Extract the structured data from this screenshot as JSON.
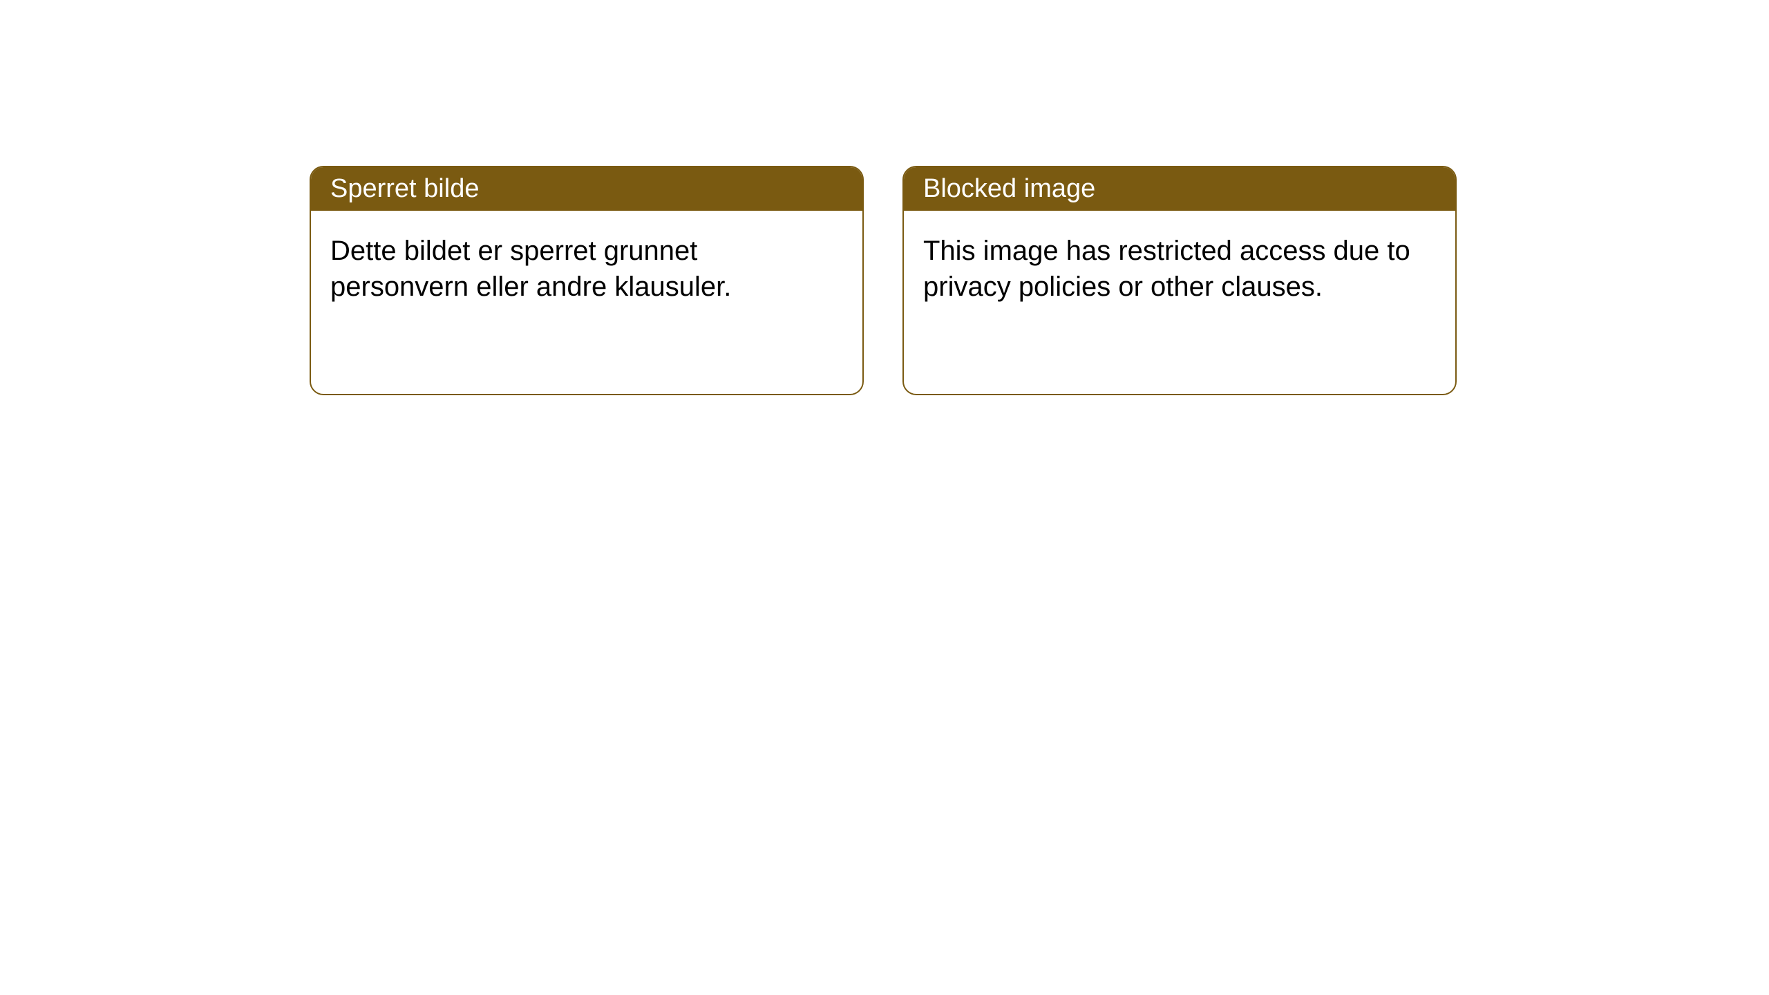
{
  "layout": {
    "type": "infographic",
    "background_color": "#ffffff",
    "card_border_color": "#7a5a11",
    "card_border_radius": 20,
    "header_background_color": "#7a5a11",
    "header_text_color": "#ffffff",
    "body_text_color": "#000000",
    "header_fontsize": 38,
    "body_fontsize": 40
  },
  "cards": [
    {
      "title": "Sperret bilde",
      "body": "Dette bildet er sperret grunnet personvern eller andre klausuler."
    },
    {
      "title": "Blocked image",
      "body": "This image has restricted access due to privacy policies or other clauses."
    }
  ]
}
